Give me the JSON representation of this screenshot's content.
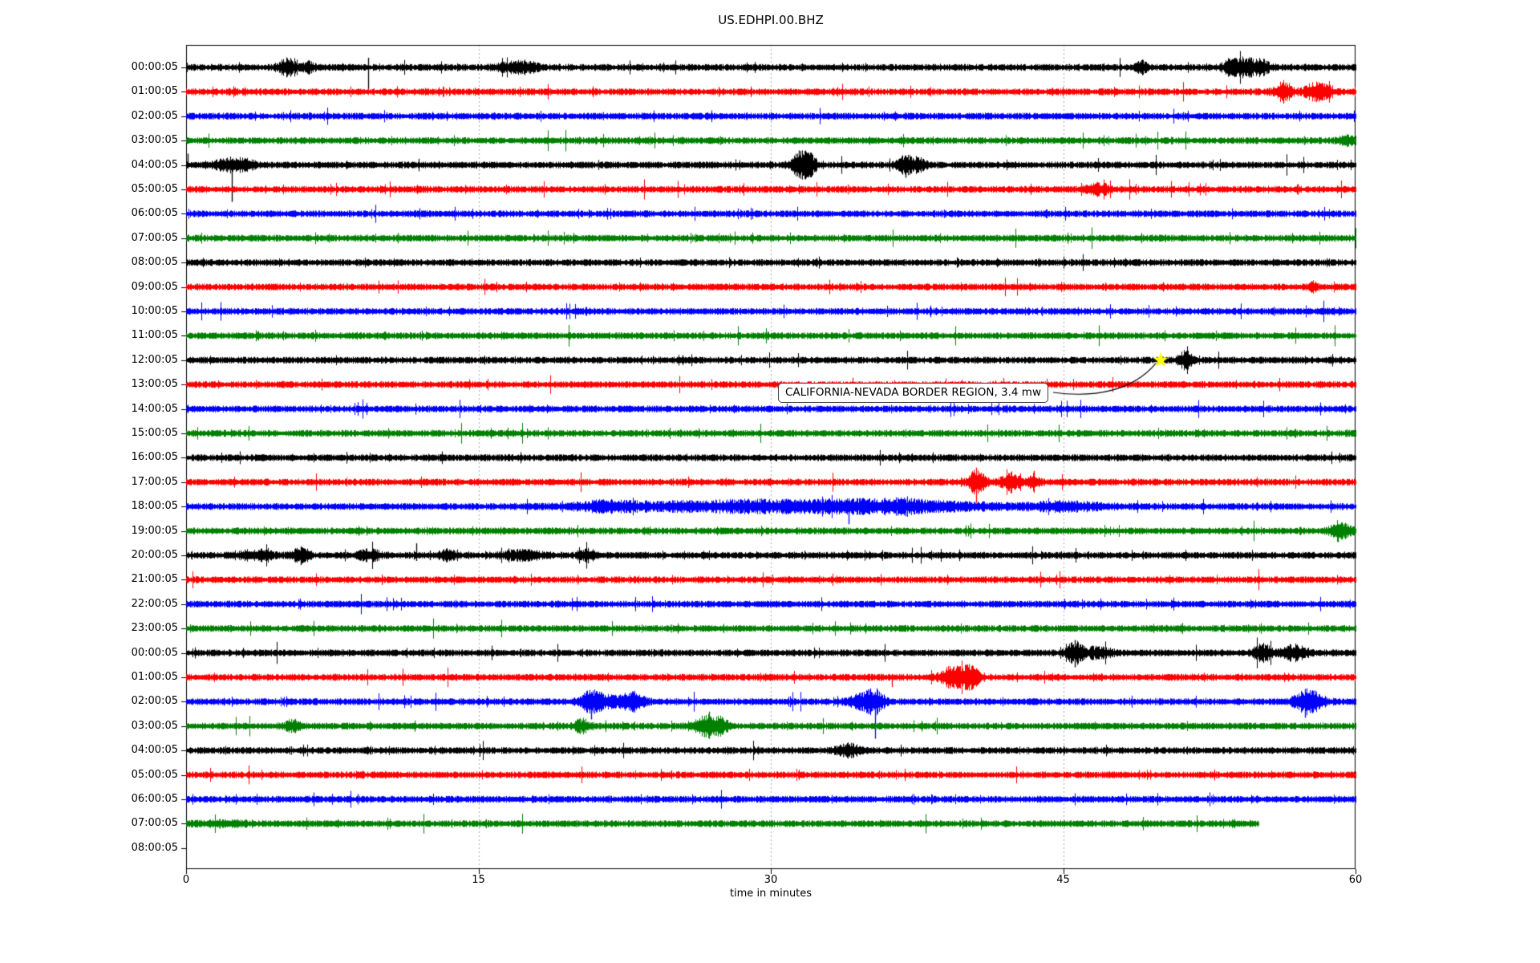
{
  "chart_data": {
    "type": "line",
    "subtype": "seismogram-helicorder-dayplot",
    "title": "US.EDHPI.00.BHZ",
    "xlabel": "time in minutes",
    "x_range": [
      0,
      60
    ],
    "x_ticks": [
      0,
      15,
      30,
      45,
      60
    ],
    "x_tick_labels": [
      "0",
      "15",
      "30",
      "45",
      "60"
    ],
    "grid_minutes": [
      15,
      30,
      45
    ],
    "grid_on": true,
    "colors": {
      "black": "#000000",
      "red": "#ff0000",
      "blue": "#0000ff",
      "green": "#008000",
      "grid": "#aaaaaa",
      "star": "#ffff00",
      "axes": "#000000"
    },
    "annotation": {
      "text": "CALIFORNIA-NEVADA BORDER REGION, 3.4 mw",
      "target_row": 12,
      "target_minute": 50
    },
    "rows": [
      {
        "label": "00:00:05",
        "color": "#000000",
        "end": 60,
        "events": [
          [
            5.2,
            0.35,
            1.8
          ],
          [
            6.3,
            0.2,
            1.2
          ],
          [
            16.6,
            0.5,
            1.0
          ],
          [
            17.5,
            0.4,
            1.1
          ],
          [
            49.0,
            0.2,
            1.4
          ],
          [
            53.6,
            0.3,
            1.8
          ],
          [
            54.4,
            0.4,
            2.2
          ],
          [
            55.2,
            0.3,
            1.4
          ]
        ],
        "spikes": [
          [
            9.35,
            12,
            30
          ],
          [
            49.0,
            9,
            8
          ],
          [
            53.9,
            10,
            8
          ]
        ]
      },
      {
        "label": "01:00:05",
        "color": "#ff0000",
        "end": 60,
        "events": [
          [
            56.3,
            0.3,
            2.5
          ],
          [
            57.9,
            0.35,
            2.2
          ],
          [
            58.6,
            0.2,
            1.2
          ]
        ],
        "spikes": [
          [
            56.3,
            10,
            14
          ],
          [
            57.9,
            6,
            12
          ]
        ]
      },
      {
        "label": "02:00:05",
        "color": "#0000ff",
        "end": 60,
        "events": [],
        "spikes": []
      },
      {
        "label": "03:00:05",
        "color": "#008000",
        "end": 60,
        "events": [
          [
            59.6,
            0.3,
            1.2
          ]
        ],
        "spikes": []
      },
      {
        "label": "04:00:05",
        "color": "#000000",
        "end": 60,
        "events": [
          [
            2.2,
            0.5,
            1.5
          ],
          [
            3.1,
            0.3,
            1.2
          ],
          [
            31.55,
            0.35,
            3.5
          ],
          [
            32.1,
            0.2,
            1.5
          ],
          [
            36.9,
            0.3,
            2.2
          ],
          [
            37.6,
            0.25,
            1.5
          ]
        ],
        "spikes": [
          [
            0.08,
            14,
            4
          ],
          [
            2.35,
            6,
            46
          ],
          [
            31.45,
            18,
            16
          ],
          [
            31.7,
            12,
            13
          ],
          [
            36.9,
            8,
            16
          ]
        ]
      },
      {
        "label": "05:00:05",
        "color": "#ff0000",
        "end": 60,
        "events": [
          [
            46.8,
            0.4,
            1.3
          ]
        ],
        "spikes": []
      },
      {
        "label": "06:00:05",
        "color": "#0000ff",
        "end": 60,
        "events": [],
        "spikes": []
      },
      {
        "label": "07:00:05",
        "color": "#008000",
        "end": 60,
        "events": [],
        "spikes": []
      },
      {
        "label": "08:00:05",
        "color": "#000000",
        "end": 60,
        "events": [],
        "spikes": []
      },
      {
        "label": "09:00:05",
        "color": "#ff0000",
        "end": 60,
        "events": [
          [
            57.8,
            0.15,
            1.0
          ]
        ],
        "spikes": []
      },
      {
        "label": "10:00:05",
        "color": "#0000ff",
        "end": 60,
        "events": [],
        "spikes": []
      },
      {
        "label": "11:00:05",
        "color": "#008000",
        "end": 60,
        "events": [],
        "spikes": []
      },
      {
        "label": "12:00:05",
        "color": "#000000",
        "end": 60,
        "events": [
          [
            51.3,
            0.25,
            2.5
          ]
        ],
        "spikes": [
          [
            51.3,
            10,
            11
          ],
          [
            51.5,
            7,
            8
          ]
        ]
      },
      {
        "label": "13:00:05",
        "color": "#ff0000",
        "end": 60,
        "events": [],
        "spikes": []
      },
      {
        "label": "14:00:05",
        "color": "#0000ff",
        "end": 60,
        "events": [],
        "spikes": []
      },
      {
        "label": "15:00:05",
        "color": "#008000",
        "end": 60,
        "events": [],
        "spikes": []
      },
      {
        "label": "16:00:05",
        "color": "#000000",
        "end": 60,
        "events": [],
        "spikes": []
      },
      {
        "label": "17:00:05",
        "color": "#ff0000",
        "end": 60,
        "events": [
          [
            40.55,
            0.3,
            3.0
          ],
          [
            42.3,
            0.35,
            2.2
          ],
          [
            43.5,
            0.2,
            1.8
          ]
        ],
        "spikes": [
          [
            40.55,
            18,
            26
          ],
          [
            40.75,
            10,
            10
          ],
          [
            42.3,
            12,
            14
          ],
          [
            43.5,
            14,
            6
          ]
        ]
      },
      {
        "label": "18:00:05",
        "color": "#0000ff",
        "end": 60,
        "events": [
          [
            21.5,
            1.0,
            0.7
          ],
          [
            24.0,
            3.0,
            0.7
          ],
          [
            28.5,
            2.0,
            0.8
          ],
          [
            33.0,
            2.5,
            1.2
          ],
          [
            36.5,
            1.5,
            1.2
          ],
          [
            40.0,
            1.5,
            0.6
          ],
          [
            45.0,
            1.5,
            0.9
          ]
        ],
        "spikes": [
          [
            20.9,
            8,
            6
          ],
          [
            23.0,
            8,
            5
          ],
          [
            29.5,
            10,
            6
          ],
          [
            31.2,
            8,
            8
          ],
          [
            34.0,
            8,
            22
          ],
          [
            35.3,
            10,
            8
          ],
          [
            36.9,
            9,
            12
          ],
          [
            44.8,
            8,
            8
          ],
          [
            46.2,
            7,
            7
          ]
        ]
      },
      {
        "label": "19:00:05",
        "color": "#008000",
        "end": 60,
        "events": [
          [
            59.2,
            0.35,
            2.5
          ]
        ],
        "spikes": [
          [
            59.1,
            8,
            14
          ]
        ]
      },
      {
        "label": "20:00:05",
        "color": "#000000",
        "end": 60,
        "events": [
          [
            3.6,
            0.6,
            1.2
          ],
          [
            5.9,
            0.3,
            1.8
          ],
          [
            9.4,
            0.4,
            1.2
          ],
          [
            13.4,
            0.3,
            1.2
          ],
          [
            17.2,
            0.8,
            1.0
          ],
          [
            20.6,
            0.3,
            1.2
          ]
        ],
        "spikes": [
          [
            5.9,
            10,
            12
          ],
          [
            11.8,
            15,
            7
          ],
          [
            12.5,
            6,
            6
          ],
          [
            20.6,
            8,
            10
          ]
        ]
      },
      {
        "label": "21:00:05",
        "color": "#ff0000",
        "end": 60,
        "events": [],
        "spikes": []
      },
      {
        "label": "22:00:05",
        "color": "#0000ff",
        "end": 60,
        "events": [],
        "spikes": []
      },
      {
        "label": "23:00:05",
        "color": "#008000",
        "end": 60,
        "events": [],
        "spikes": []
      },
      {
        "label": "00:00:05",
        "color": "#000000",
        "end": 60,
        "events": [
          [
            45.6,
            0.3,
            2.8
          ],
          [
            46.8,
            0.5,
            1.2
          ],
          [
            55.2,
            0.3,
            2.2
          ],
          [
            56.8,
            0.5,
            1.8
          ]
        ],
        "spikes": [
          [
            45.6,
            16,
            18
          ],
          [
            55.2,
            10,
            10
          ],
          [
            56.6,
            8,
            8
          ]
        ]
      },
      {
        "label": "01:00:05",
        "color": "#ff0000",
        "end": 60,
        "events": [
          [
            39.4,
            0.5,
            2.8
          ],
          [
            40.3,
            0.3,
            2.2
          ]
        ],
        "spikes": [
          [
            36.2,
            4,
            12
          ],
          [
            39.3,
            10,
            12
          ],
          [
            40.3,
            14,
            16
          ]
        ]
      },
      {
        "label": "02:00:05",
        "color": "#0000ff",
        "end": 60,
        "events": [
          [
            20.8,
            0.4,
            2.5
          ],
          [
            22.2,
            0.8,
            1.3
          ],
          [
            23.0,
            0.3,
            1.5
          ],
          [
            34.8,
            0.5,
            2.0
          ],
          [
            35.4,
            0.3,
            2.2
          ],
          [
            57.6,
            0.5,
            3.0
          ]
        ],
        "spikes": [
          [
            20.8,
            12,
            22
          ],
          [
            22.95,
            10,
            8
          ],
          [
            34.5,
            8,
            10
          ],
          [
            35.35,
            12,
            46
          ],
          [
            57.4,
            16,
            20
          ],
          [
            57.9,
            14,
            10
          ]
        ]
      },
      {
        "label": "03:00:05",
        "color": "#008000",
        "end": 60,
        "events": [
          [
            5.5,
            0.3,
            1.3
          ],
          [
            20.3,
            0.3,
            1.5
          ],
          [
            26.8,
            0.45,
            3.0
          ],
          [
            27.5,
            0.2,
            1.5
          ]
        ],
        "spikes": [
          [
            26.6,
            8,
            14
          ],
          [
            26.85,
            18,
            16
          ],
          [
            27.1,
            6,
            12
          ]
        ]
      },
      {
        "label": "04:00:05",
        "color": "#000000",
        "end": 60,
        "events": [
          [
            34.0,
            0.4,
            1.4
          ]
        ],
        "spikes": []
      },
      {
        "label": "05:00:05",
        "color": "#ff0000",
        "end": 60,
        "events": [],
        "spikes": []
      },
      {
        "label": "06:00:05",
        "color": "#0000ff",
        "end": 60,
        "events": [],
        "spikes": []
      },
      {
        "label": "07:00:05",
        "color": "#008000",
        "end": 55,
        "events": [
          [
            2.0,
            1.0,
            0.5
          ]
        ],
        "spikes": []
      },
      {
        "label": "08:00:05",
        "color": "#000000",
        "end": 0,
        "events": [],
        "spikes": []
      }
    ]
  }
}
